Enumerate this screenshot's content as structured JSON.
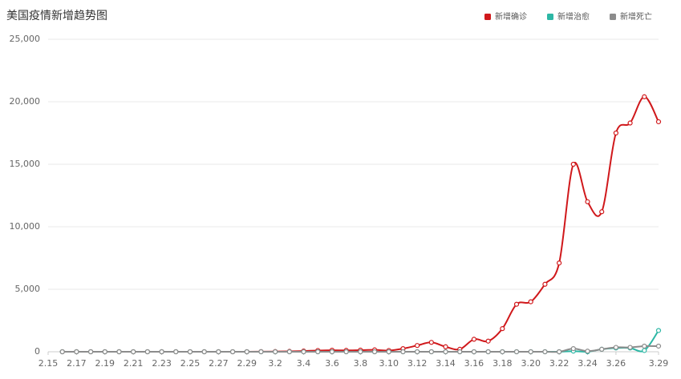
{
  "chart_data": {
    "type": "line",
    "title": "美国疫情新增趋势图",
    "categories": [
      "2.15",
      null,
      "2.17",
      null,
      "2.19",
      null,
      "2.21",
      null,
      "2.23",
      null,
      "2.25",
      null,
      "2.27",
      null,
      "2.29",
      null,
      "3.2",
      null,
      "3.4",
      null,
      "3.6",
      null,
      "3.8",
      null,
      "3.10",
      null,
      "3.12",
      null,
      "3.14",
      null,
      "3.16",
      null,
      "3.18",
      null,
      "3.20",
      null,
      "3.22",
      null,
      "3.24",
      null,
      "3.26",
      null,
      null,
      "3.29"
    ],
    "series": [
      {
        "name": "新增确诊",
        "color": "#d0181b",
        "values": [
          null,
          0,
          0,
          0,
          0,
          0,
          0,
          0,
          0,
          0,
          0,
          0,
          0,
          0,
          0,
          10,
          20,
          30,
          60,
          100,
          120,
          110,
          130,
          150,
          100,
          250,
          500,
          750,
          400,
          200,
          1000,
          850,
          1850,
          3800,
          4000,
          5400,
          7100,
          15000,
          12000,
          11200,
          17500,
          18300,
          20400,
          18400
        ]
      },
      {
        "name": "新增治愈",
        "color": "#2db7a5",
        "values": [
          null,
          0,
          0,
          0,
          0,
          0,
          0,
          0,
          0,
          0,
          0,
          0,
          0,
          0,
          0,
          0,
          0,
          0,
          0,
          0,
          0,
          0,
          0,
          0,
          0,
          0,
          0,
          0,
          0,
          0,
          0,
          0,
          0,
          0,
          0,
          0,
          0,
          50,
          0,
          200,
          300,
          300,
          100,
          1700
        ]
      },
      {
        "name": "新增死亡",
        "color": "#8c8c8c",
        "values": [
          null,
          0,
          0,
          0,
          0,
          0,
          0,
          0,
          0,
          0,
          0,
          0,
          0,
          0,
          0,
          0,
          0,
          0,
          0,
          0,
          0,
          0,
          0,
          0,
          0,
          0,
          0,
          0,
          0,
          0,
          0,
          0,
          0,
          0,
          0,
          0,
          0,
          250,
          50,
          200,
          350,
          350,
          450,
          450
        ]
      }
    ],
    "ylim": [
      0,
      25000
    ],
    "yticks": [
      0,
      {
        "value": 5000,
        "label": "5,000"
      },
      {
        "value": 10000,
        "label": "10,000"
      },
      {
        "value": 15000,
        "label": "15,000"
      },
      {
        "value": 20000,
        "label": "20,000"
      },
      {
        "value": 25000,
        "label": "25,000"
      }
    ],
    "grid": true
  }
}
